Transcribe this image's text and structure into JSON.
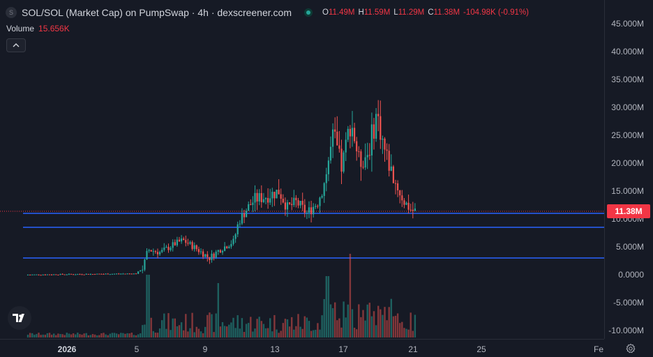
{
  "legend": {
    "symbol_icon": "S",
    "title": "SOL/SOL (Market Cap) on PumpSwap · 4h · dexscreener.com",
    "ohlc": [
      {
        "k": "O",
        "v": "11.49M"
      },
      {
        "k": "H",
        "v": "11.59M"
      },
      {
        "k": "L",
        "v": "11.29M"
      },
      {
        "k": "C",
        "v": "11.38M"
      },
      {
        "k": "",
        "v": "-104.98K (-0.91%)"
      }
    ]
  },
  "volume": {
    "label": "Volume",
    "value": "15.656K"
  },
  "price_axis": {
    "ticks": [
      "45.000M",
      "40.000M",
      "35.000M",
      "30.000M",
      "25.000M",
      "20.000M",
      "15.000M",
      "10.000M",
      "5.000M",
      "0.0000",
      "-5.000M",
      "-10.000M"
    ]
  },
  "current_price": {
    "label": "11.38M",
    "color": "#f23645"
  },
  "time_axis": {
    "ticks": [
      {
        "label": "2026",
        "bold": true
      },
      {
        "label": "5",
        "bold": false
      },
      {
        "label": "9",
        "bold": false
      },
      {
        "label": "13",
        "bold": false
      },
      {
        "label": "17",
        "bold": false
      },
      {
        "label": "21",
        "bold": false
      },
      {
        "label": "25",
        "bold": false
      },
      {
        "label": "Fe",
        "bold": false
      }
    ]
  },
  "horizontal_lines": [
    11.0,
    8.5,
    3.0
  ],
  "colors": {
    "up": "#26a69a",
    "down": "#ef5350",
    "line": "#2962ff",
    "background": "#161a25"
  },
  "icons": {
    "collapse": "chevron-up-icon",
    "settings": "gear-icon",
    "logo": "tradingview-logo-icon"
  }
}
